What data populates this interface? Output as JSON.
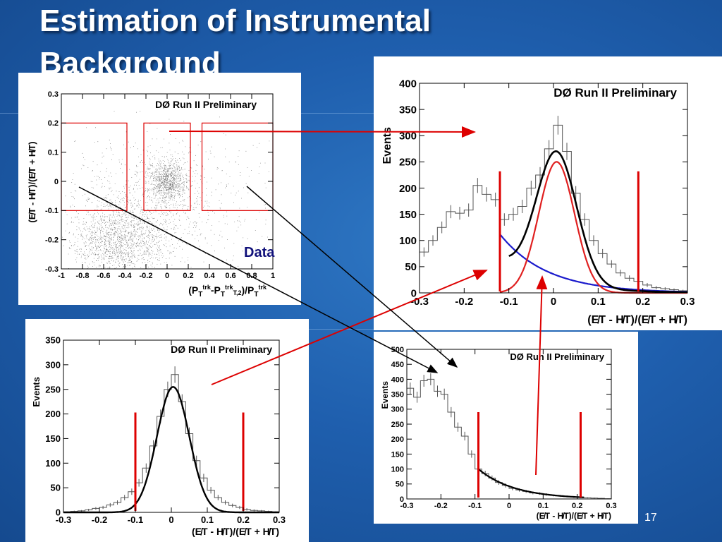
{
  "slide": {
    "title_line1": "Estimation of Instrumental",
    "title_line2": "Background",
    "page_number": "17"
  },
  "colors": {
    "fit_total": "#000000",
    "fit_signal": "#e02020",
    "fit_background": "#1a1acc",
    "cut_line": "#dd0000",
    "arrow_red": "#dd0000",
    "arrow_black": "#000000",
    "histogram": "#555555"
  },
  "chart_data": [
    {
      "id": "scatter",
      "type": "scatter",
      "title": "DØ Run II Preliminary",
      "xlabel_main": "(P",
      "xlabel_sup1": "trk",
      "xlabel_mid1": "-P",
      "xlabel_sup2": "trk",
      "xlabel_sub2": "T,2",
      "xlabel_mid2": ")/P",
      "xlabel_sup3": "trk",
      "ylabel": "(E̸T - H̸T)/(E̸T + H̸T)",
      "annotation": "Data",
      "xlim": [
        -1,
        1
      ],
      "ylim": [
        -0.3,
        0.3
      ],
      "x_ticks": [
        "-1",
        "-0.8",
        "-0.6",
        "-0.4",
        "-0.2",
        "0",
        "0.2",
        "0.4",
        "0.6",
        "0.8",
        "1"
      ],
      "y_ticks": [
        "-0.3",
        "-0.2",
        "-0.1",
        "0",
        "0.1",
        "0.2",
        "0.3"
      ],
      "regions": [
        {
          "x": [
            -1.0,
            -0.38
          ],
          "y": [
            -0.1,
            0.2
          ]
        },
        {
          "x": [
            -0.22,
            0.22
          ],
          "y": [
            -0.1,
            0.2
          ]
        },
        {
          "x": [
            0.33,
            1.0
          ],
          "y": [
            -0.1,
            0.2
          ]
        }
      ],
      "clusters": [
        {
          "x": 0.0,
          "y": 0.0,
          "sx": 0.09,
          "sy": 0.035,
          "n": 900
        },
        {
          "x": -0.45,
          "y": -0.2,
          "sx": 0.22,
          "sy": 0.06,
          "n": 1400
        },
        {
          "x": -0.3,
          "y": -0.1,
          "sx": 0.35,
          "sy": 0.12,
          "n": 600
        },
        {
          "x": 0.2,
          "y": -0.05,
          "sx": 0.45,
          "sy": 0.12,
          "n": 400
        }
      ]
    },
    {
      "id": "main",
      "type": "line",
      "title": "DØ Run II Preliminary",
      "ylabel": "Events",
      "xlabel": "(E̸T - H̸T)/(E̸T + H̸T)",
      "xlim": [
        -0.3,
        0.3
      ],
      "ylim": [
        0,
        400
      ],
      "x_ticks": [
        "-0.3",
        "-0.2",
        "-0.1",
        "0",
        "0.1",
        "0.2",
        "0.3"
      ],
      "y_ticks": [
        "0",
        "50",
        "100",
        "150",
        "200",
        "250",
        "300",
        "350",
        "400"
      ],
      "cuts": [
        -0.12,
        0.19
      ],
      "hist_x": [
        -0.29,
        -0.27,
        -0.25,
        -0.23,
        -0.21,
        -0.19,
        -0.17,
        -0.15,
        -0.13,
        -0.11,
        -0.09,
        -0.07,
        -0.05,
        -0.03,
        -0.01,
        0.01,
        0.03,
        0.05,
        0.07,
        0.09,
        0.11,
        0.13,
        0.15,
        0.17,
        0.19,
        0.21,
        0.23,
        0.25,
        0.27,
        0.29
      ],
      "hist_y": [
        78,
        100,
        125,
        155,
        152,
        158,
        205,
        188,
        178,
        140,
        150,
        165,
        200,
        225,
        275,
        320,
        270,
        190,
        140,
        100,
        75,
        55,
        38,
        28,
        22,
        15,
        10,
        8,
        6,
        4
      ],
      "fit_total": {
        "norm": 290,
        "mean": 0.007,
        "sigma": 0.045,
        "x": [
          -0.1,
          0.3
        ]
      },
      "fit_signal": {
        "norm": 250,
        "mean": 0.007,
        "sigma": 0.04,
        "x": [
          -0.12,
          0.3
        ]
      },
      "fit_background": {
        "a": 112,
        "b": 9.5,
        "x0": -0.12,
        "x": [
          -0.12,
          0.3
        ]
      }
    },
    {
      "id": "bottom_left",
      "type": "line",
      "title": "DØ Run II Preliminary",
      "ylabel": "Events",
      "xlabel": "(E̸T - H̸T)/(E̸T + H̸T)",
      "xlim": [
        -0.3,
        0.3
      ],
      "ylim": [
        0,
        350
      ],
      "x_ticks": [
        "-0.3",
        "-0.2",
        "-0.1",
        "0",
        "0.1",
        "0.2",
        "0.3"
      ],
      "y_ticks": [
        "0",
        "50",
        "100",
        "150",
        "200",
        "250",
        "300",
        "350"
      ],
      "cuts": [
        -0.1,
        0.2
      ],
      "hist_x": [
        -0.29,
        -0.27,
        -0.25,
        -0.23,
        -0.21,
        -0.19,
        -0.17,
        -0.15,
        -0.13,
        -0.11,
        -0.09,
        -0.07,
        -0.05,
        -0.03,
        -0.01,
        0.01,
        0.03,
        0.05,
        0.07,
        0.09,
        0.11,
        0.13,
        0.15,
        0.17,
        0.19,
        0.21,
        0.23,
        0.25,
        0.27,
        0.29
      ],
      "hist_y": [
        1,
        2,
        3,
        5,
        8,
        10,
        15,
        20,
        30,
        42,
        60,
        90,
        135,
        195,
        250,
        280,
        225,
        160,
        105,
        70,
        45,
        30,
        20,
        14,
        10,
        6,
        4,
        3,
        2,
        1
      ],
      "fit_total": {
        "norm": 255,
        "mean": 0.005,
        "sigma": 0.045,
        "x": [
          -0.3,
          0.3
        ]
      }
    },
    {
      "id": "bottom_right",
      "type": "line",
      "title": "DØ Run II Preliminary",
      "ylabel": "Events",
      "xlabel": "(E̸T - H̸T)/(E̸T + H̸T)",
      "xlim": [
        -0.3,
        0.3
      ],
      "ylim": [
        0,
        500
      ],
      "x_ticks": [
        "-0.3",
        "-0.2",
        "-0.1",
        "0",
        "0.1",
        "0.2",
        "0.3"
      ],
      "y_ticks": [
        "0",
        "50",
        "100",
        "150",
        "200",
        "250",
        "300",
        "350",
        "400",
        "450",
        "500"
      ],
      "cuts": [
        -0.09,
        0.21
      ],
      "hist_x": [
        -0.29,
        -0.27,
        -0.25,
        -0.23,
        -0.21,
        -0.19,
        -0.17,
        -0.15,
        -0.13,
        -0.11,
        -0.09,
        -0.07,
        -0.05,
        -0.03,
        -0.01,
        0.01,
        0.03,
        0.05,
        0.07,
        0.09,
        0.11,
        0.13,
        0.15,
        0.17,
        0.19,
        0.21,
        0.23,
        0.25,
        0.27,
        0.29
      ],
      "hist_y": [
        370,
        340,
        395,
        400,
        360,
        350,
        290,
        240,
        210,
        150,
        100,
        85,
        70,
        55,
        45,
        35,
        30,
        25,
        20,
        18,
        15,
        12,
        10,
        8,
        6,
        5,
        4,
        3,
        2,
        1
      ],
      "fit_background": {
        "a": 100,
        "b": 9.5,
        "x0": -0.09,
        "x": [
          -0.09,
          0.22
        ]
      }
    }
  ]
}
